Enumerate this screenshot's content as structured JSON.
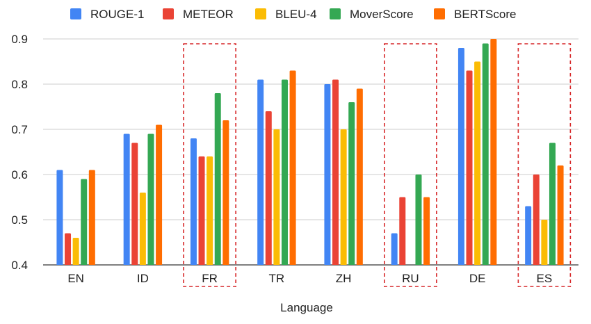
{
  "chart_data": {
    "type": "bar",
    "title": "",
    "xlabel": "Language",
    "ylabel": "",
    "ylim": [
      0.4,
      0.9
    ],
    "yticks": [
      "0.4",
      "0.5",
      "0.6",
      "0.7",
      "0.8",
      "0.9"
    ],
    "grid": true,
    "legend_position": "top",
    "categories": [
      "EN",
      "ID",
      "FR",
      "TR",
      "ZH",
      "RU",
      "DE",
      "ES"
    ],
    "highlighted_categories": [
      "FR",
      "RU",
      "ES"
    ],
    "series": [
      {
        "name": "ROUGE-1",
        "color": "#4285f4",
        "values": [
          0.61,
          0.69,
          0.68,
          0.81,
          0.8,
          0.47,
          0.88,
          0.53
        ]
      },
      {
        "name": "METEOR",
        "color": "#ea4335",
        "values": [
          0.47,
          0.67,
          0.64,
          0.74,
          0.81,
          0.55,
          0.83,
          0.6
        ]
      },
      {
        "name": "BLEU-4",
        "color": "#fbbc04",
        "values": [
          0.46,
          0.56,
          0.64,
          0.7,
          0.7,
          0.4,
          0.85,
          0.5
        ]
      },
      {
        "name": "MoverScore",
        "color": "#34a853",
        "values": [
          0.59,
          0.69,
          0.78,
          0.81,
          0.76,
          0.6,
          0.89,
          0.67
        ]
      },
      {
        "name": "BERTScore",
        "color": "#ff6d01",
        "values": [
          0.61,
          0.71,
          0.72,
          0.83,
          0.79,
          0.55,
          0.9,
          0.62
        ]
      }
    ],
    "colors": {
      "grid": "#cccccc",
      "axis": "#333333",
      "highlight_box": "#d62728"
    }
  }
}
